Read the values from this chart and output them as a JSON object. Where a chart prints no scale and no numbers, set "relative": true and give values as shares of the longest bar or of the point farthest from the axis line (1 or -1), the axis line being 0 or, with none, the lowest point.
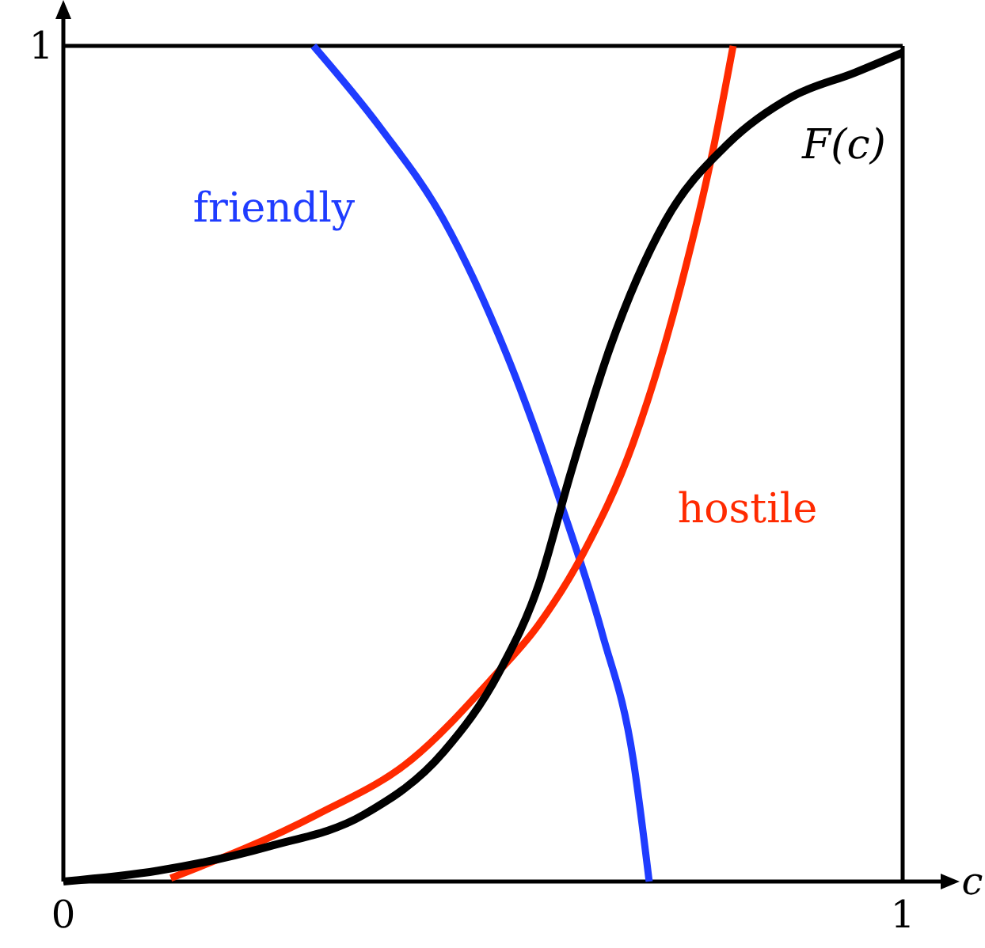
{
  "chart_data": {
    "type": "line",
    "xlabel": "c",
    "xlim": [
      0,
      1
    ],
    "xticks": [
      0,
      1
    ],
    "relative": true,
    "annotations": [
      "1"
    ],
    "marker": "none",
    "line_style": "solid",
    "series": [
      {
        "name": "friendly",
        "color": "#1f3cff",
        "x": [
          0.298,
          0.377,
          0.453,
          0.528,
          0.594,
          0.642,
          0.679,
          0.698
        ],
        "values": [
          1,
          0.903,
          0.792,
          0.631,
          0.449,
          0.297,
          0.146,
          0
        ]
      },
      {
        "name": "hostile",
        "color": "#ff2a00",
        "x": [
          0.128,
          0.302,
          0.415,
          0.509,
          0.566,
          0.619,
          0.679,
          0.736,
          0.774,
          0.798
        ],
        "values": [
          0.004,
          0.08,
          0.146,
          0.241,
          0.307,
          0.392,
          0.525,
          0.714,
          0.875,
          1
        ]
      },
      {
        "name": "F(c)",
        "color": "#000000",
        "x": [
          0,
          0.113,
          0.245,
          0.358,
          0.453,
          0.519,
          0.566,
          0.604,
          0.651,
          0.717,
          0.792,
          0.868,
          0.943,
          1
        ],
        "values": [
          0,
          0.013,
          0.042,
          0.08,
          0.155,
          0.25,
          0.354,
          0.487,
          0.638,
          0.79,
          0.883,
          0.939,
          0.968,
          0.992
        ]
      }
    ]
  }
}
